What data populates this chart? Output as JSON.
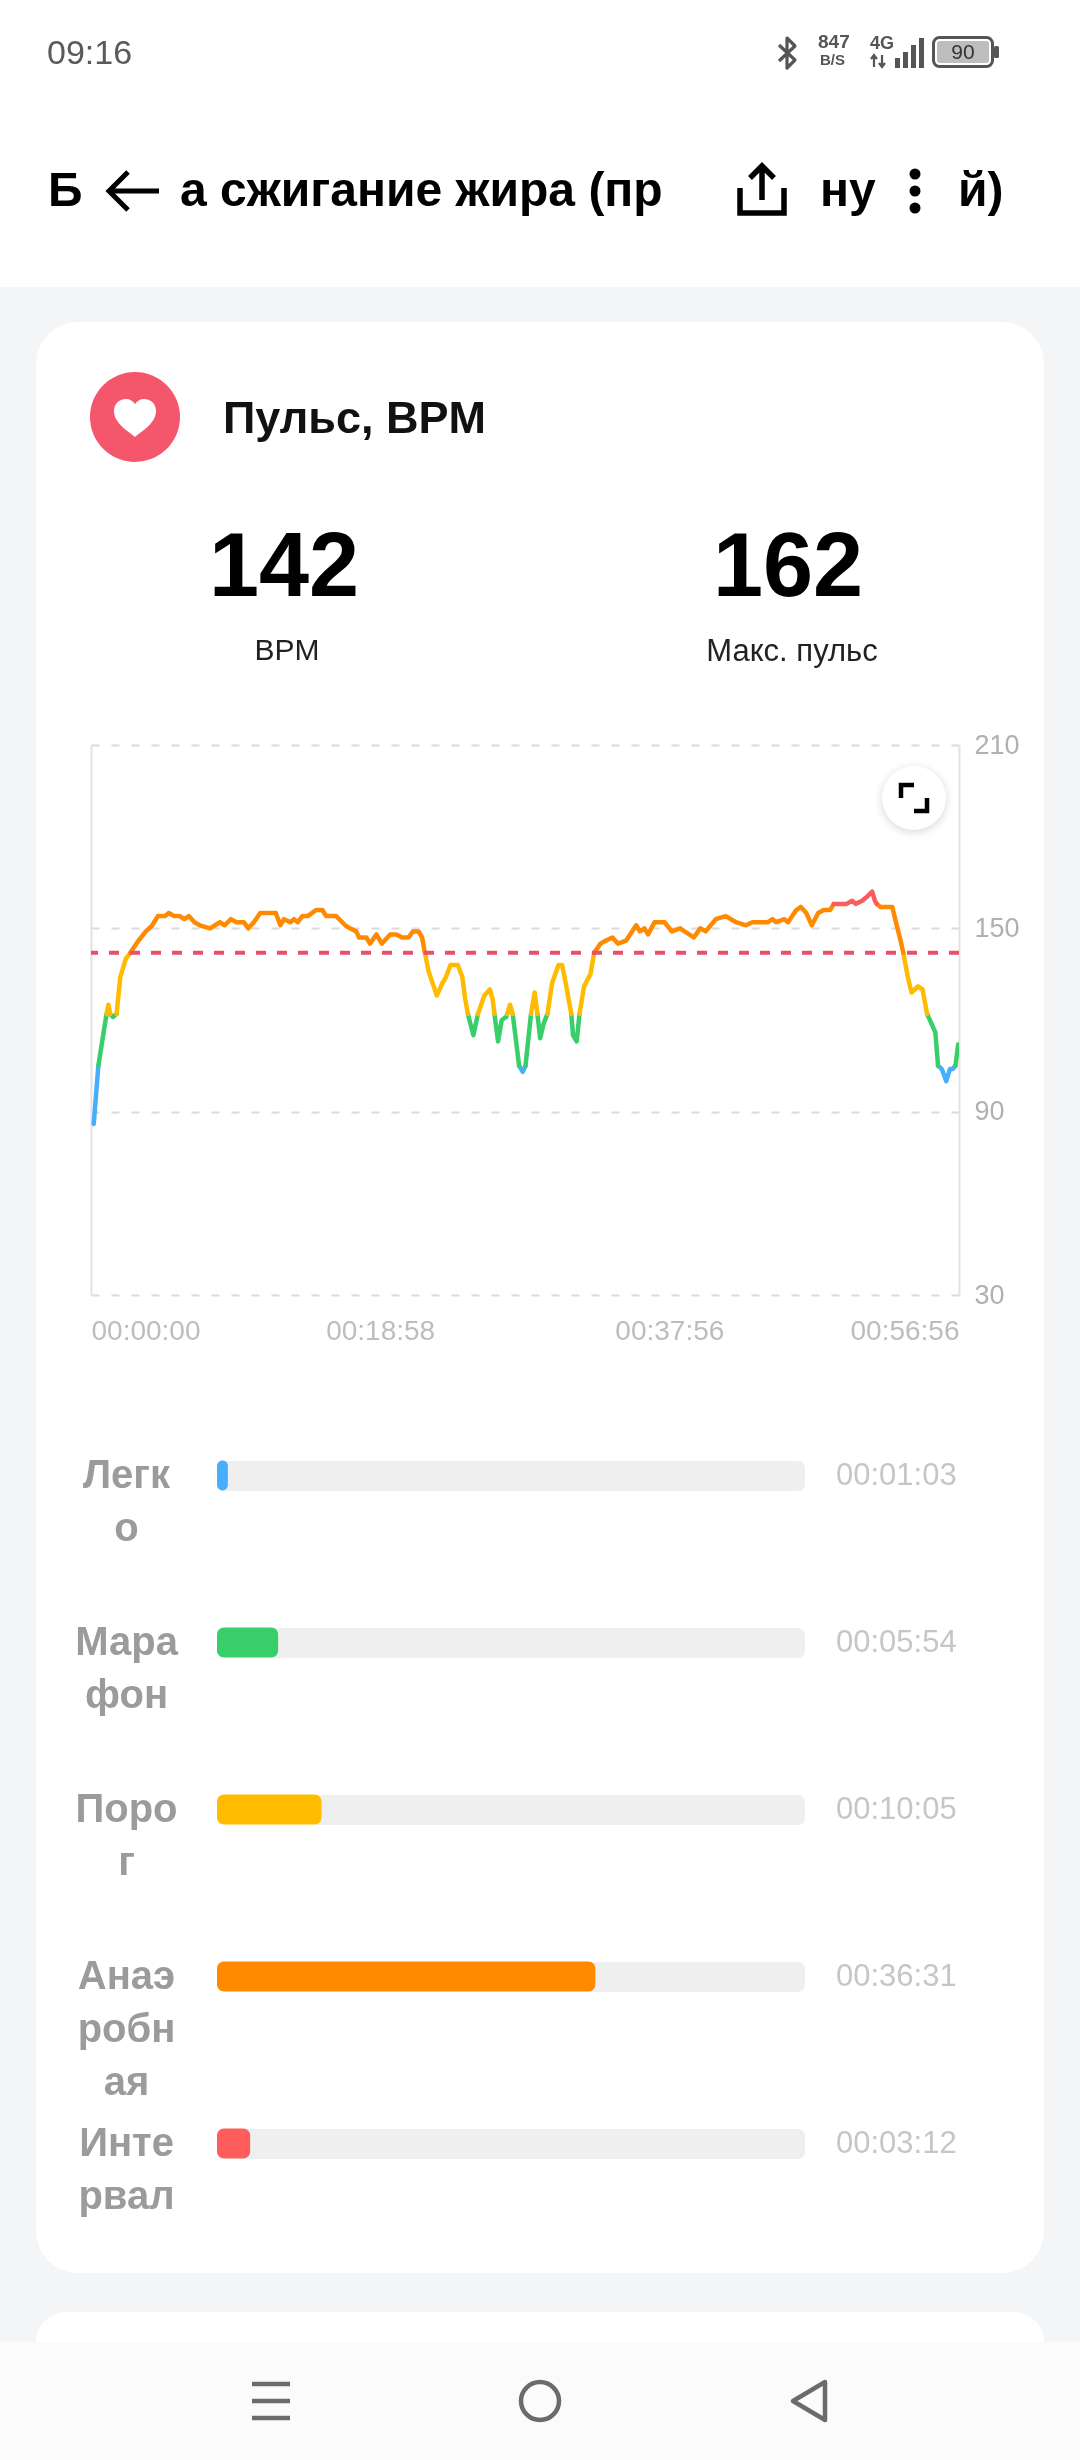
{
  "chart_data": [
    {
      "type": "other",
      "annotations": [
        "09:16",
        "847",
        "B/S",
        "4G",
        "90",
        "Б",
        "а сжигание жира (пр",
        "ну",
        "й)"
      ]
    },
    {
      "type": "line",
      "title": "Пульс, BPM",
      "annotations": [
        "142",
        "BPM",
        "162",
        "Макс. пульс"
      ],
      "series": [
        {
          "color": "#47aefc",
          "x": [
            0.003,
            0.008,
            0.2,
            0.468,
            0.472,
            0.475,
            0.7,
            0.926,
            0.93,
            0.935,
            0.939,
            0.942,
            0.945
          ],
          "values": [
            86,
            105,
            null,
            105,
            103,
            105,
            null,
            105,
            104,
            100,
            104,
            104,
            105
          ]
        },
        {
          "color": "#38cf6a",
          "x": [
            0.008,
            0.017,
            0.019,
            0.021,
            0.024,
            0.028,
            0.2,
            0.412,
            0.418,
            0.423,
            0.43,
            0.441,
            0.445,
            0.449,
            0.454,
            0.455,
            0.458,
            0.461,
            0.468,
            0.472,
            0.475,
            0.481,
            0.485,
            0.488,
            0.491,
            0.495,
            0.499,
            0.51,
            0.525,
            0.527,
            0.531,
            0.534,
            0.7,
            0.914,
            0.92,
            0.923,
            0.926,
            0.935,
            0.945,
            0.948
          ],
          "values": [
            105,
            122,
            null,
            122,
            121,
            122,
            null,
            122,
            115,
            122,
            null,
            122,
            113,
            120,
            121,
            122,
            null,
            122,
            105,
            null,
            105,
            122,
            null,
            122,
            114,
            119,
            122,
            null,
            122,
            115,
            113,
            122,
            null,
            122,
            118,
            116,
            105,
            null,
            105,
            112
          ]
        },
        {
          "color": "#ffbb00",
          "x": [
            0.017,
            0.019,
            0.021,
            0.024,
            0.028,
            0.032,
            0.038,
            0.043,
            0.2,
            0.365,
            0.369,
            0.378,
            0.384,
            0.388,
            0.393,
            0.401,
            0.406,
            0.409,
            0.412,
            0.418,
            0.423,
            0.43,
            0.436,
            0.439,
            0.441,
            0.445,
            0.455,
            0.458,
            0.461,
            0.47,
            0.481,
            0.485,
            0.488,
            0.493,
            0.499,
            0.504,
            0.511,
            0.515,
            0.519,
            0.525,
            0.529,
            0.534,
            0.539,
            0.546,
            0.55,
            0.7,
            0.888,
            0.893,
            0.897,
            0.904,
            0.909,
            0.914
          ],
          "values": [
            122,
            125,
            122,
            null,
            122,
            134,
            140,
            142,
            null,
            142,
            136,
            128,
            132,
            134,
            138,
            138,
            134,
            127,
            122,
            null,
            122,
            128,
            130,
            127,
            122,
            null,
            122,
            125,
            122,
            null,
            122,
            129,
            122,
            null,
            122,
            132,
            138,
            138,
            132,
            122,
            null,
            122,
            131,
            135,
            142,
            null,
            142,
            134,
            129,
            131,
            130,
            122
          ]
        },
        {
          "color": "#ff8a00",
          "x": [
            0.043,
            0.052,
            0.06,
            0.067,
            0.073,
            0.081,
            0.085,
            0.091,
            0.097,
            0.102,
            0.107,
            0.113,
            0.119,
            0.13,
            0.141,
            0.146,
            0.153,
            0.159,
            0.167,
            0.172,
            0.178,
            0.185,
            0.202,
            0.207,
            0.211,
            0.218,
            0.222,
            0.226,
            0.231,
            0.237,
            0.246,
            0.253,
            0.257,
            0.268,
            0.278,
            0.283,
            0.29,
            0.293,
            0.301,
            0.305,
            0.312,
            0.318,
            0.327,
            0.334,
            0.34,
            0.347,
            0.352,
            0.358,
            0.362,
            0.365,
            0.45,
            0.55,
            0.557,
            0.563,
            0.57,
            0.576,
            0.585,
            0.596,
            0.6,
            0.605,
            0.609,
            0.616,
            0.627,
            0.635,
            0.644,
            0.659,
            0.666,
            0.672,
            0.683,
            0.694,
            0.705,
            0.716,
            0.723,
            0.74,
            0.745,
            0.749,
            0.758,
            0.762,
            0.771,
            0.776,
            0.782,
            0.788,
            0.795,
            0.801,
            0.808,
            0.812,
            0.835,
            0.859,
            0.863,
            0.871,
            0.876,
            0.88,
            0.885,
            0.888
          ],
          "values": [
            142,
            146,
            149,
            151,
            154,
            154,
            155,
            154,
            154,
            153,
            154,
            152,
            151,
            150,
            152,
            151,
            153,
            152,
            152,
            150,
            152,
            155,
            155,
            151,
            153,
            152,
            153,
            152,
            154,
            154,
            156,
            156,
            154,
            154,
            151,
            150,
            149,
            147,
            147,
            145,
            148,
            145,
            148,
            148,
            147,
            147,
            149,
            149,
            147,
            142,
            null,
            142,
            145,
            146,
            147,
            145,
            146,
            151,
            149,
            150,
            148,
            152,
            152,
            149,
            150,
            147,
            150,
            149,
            153,
            154,
            152,
            151,
            152,
            152,
            153,
            152,
            153,
            152,
            156,
            157,
            155,
            151,
            155,
            156,
            156,
            158,
            null,
            158,
            157,
            157,
            157,
            152,
            146,
            142
          ]
        },
        {
          "color": "#f95c5c",
          "x": [
            0.812,
            0.819,
            0.826,
            0.832,
            0.836,
            0.843,
            0.847,
            0.854,
            0.857,
            0.859
          ],
          "values": [
            158,
            158,
            158,
            159,
            158,
            159,
            160,
            162,
            159,
            158
          ]
        }
      ],
      "xlim": [
        0,
        0.94889
      ],
      "xticks": [
        {
          "value": 0,
          "label": "00:00:00"
        },
        {
          "value": 0.31611,
          "label": "00:18:58"
        },
        {
          "value": 0.63222,
          "label": "00:37:56"
        },
        {
          "value": 0.94889,
          "label": "00:56:56"
        }
      ],
      "ylim": [
        30,
        210
      ],
      "yticks": [
        30,
        90,
        150,
        210
      ],
      "grid": "y",
      "line_style": "solid",
      "ref_lines": [
        {
          "axis": "y",
          "value": 142,
          "color": "#e94f6a",
          "line_style": "dashed"
        }
      ]
    },
    {
      "type": "bar",
      "orientation": "horizontal",
      "categories": [
        "Легко",
        "Марафон",
        "Порог",
        "Анаэробная",
        "Интервал"
      ],
      "values": [
        0.0175,
        0.09833,
        0.16806,
        0.60861,
        0.05333
      ],
      "colors": [
        "#47aefc",
        "#38cf6a",
        "#ffbb00",
        "#ff8a00",
        "#ff5c5c"
      ],
      "value_labels": [
        "00:01:03",
        "00:05:54",
        "00:10:05",
        "00:36:31",
        "00:03:12"
      ],
      "tick_labels": "y"
    }
  ]
}
